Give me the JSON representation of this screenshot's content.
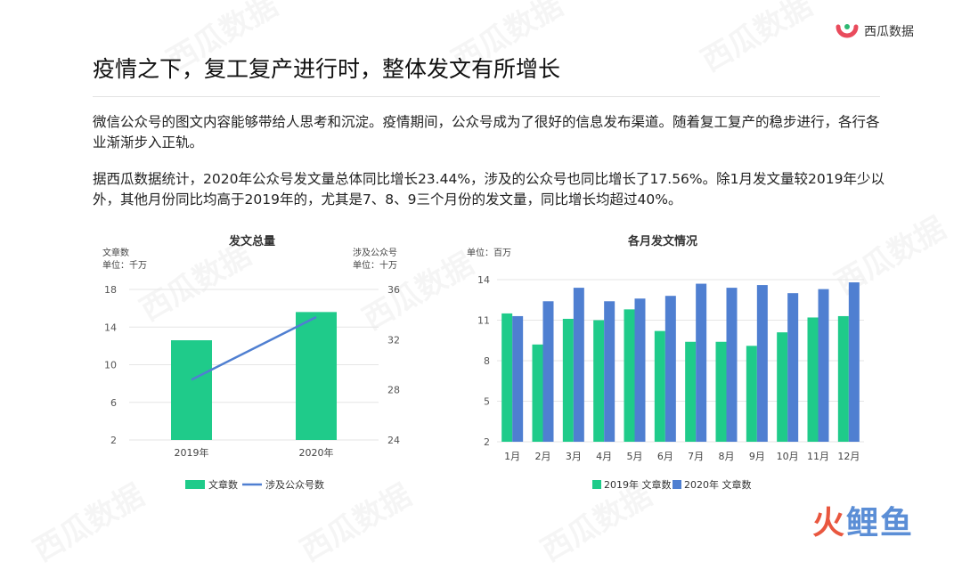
{
  "header": {
    "title": "疫情之下，复工复产进行时，整体发文有所增长",
    "logo_text": "西瓜数据",
    "logo_color": "#e94b5c",
    "logo_accent": "#2eb872"
  },
  "paragraphs": [
    "微信公众号的图文内容能够带给人思考和沉淀。疫情期间，公众号成为了很好的信息发布渠道。随着复工复产的稳步进行，各行各业渐渐步入正轨。",
    "据西瓜数据统计，2020年公众号发文量总体同比增长23.44%，涉及的公众号也同比增长了17.56%。除1月发文量较2019年少以外，其他月份同比均高于2019年的，尤其是7、8、9三个月份的发文量，同比增长均超过40%。"
  ],
  "watermark_text": "西瓜数据",
  "brand": {
    "part1": "火",
    "part2": "鲤鱼"
  },
  "chart_data": [
    {
      "type": "bar+line",
      "title": "发文总量",
      "categories": [
        "2019年",
        "2020年"
      ],
      "left_axis": {
        "label": "文章数",
        "unit": "单位：千万",
        "ticks": [
          2,
          6,
          10,
          14,
          18
        ],
        "ylim": [
          2,
          18
        ]
      },
      "right_axis": {
        "label": "涉及公众号",
        "unit": "单位：十万",
        "ticks": [
          24,
          28,
          32,
          36
        ],
        "ylim": [
          24,
          36
        ]
      },
      "series": [
        {
          "name": "文章数",
          "type": "bar",
          "axis": "left",
          "color": "#1fcb8a",
          "values": [
            12.6,
            15.6
          ]
        },
        {
          "name": "涉及公众号数",
          "type": "line",
          "axis": "right",
          "color": "#4f7fd1",
          "values": [
            28.8,
            33.8
          ]
        }
      ],
      "legend": "bottom"
    },
    {
      "type": "bar",
      "title": "各月发文情况",
      "unit": "单位：百万",
      "categories": [
        "1月",
        "2月",
        "3月",
        "4月",
        "5月",
        "6月",
        "7月",
        "8月",
        "9月",
        "10月",
        "11月",
        "12月"
      ],
      "ylim": [
        2,
        14
      ],
      "ticks": [
        2,
        5,
        8,
        11,
        14
      ],
      "series": [
        {
          "name": "2019年 文章数",
          "color": "#1fcb8a",
          "values": [
            11.5,
            9.2,
            11.1,
            11.0,
            11.8,
            10.2,
            9.4,
            9.4,
            9.1,
            10.1,
            11.2,
            11.3
          ]
        },
        {
          "name": "2020年 文章数",
          "color": "#4f7fd1",
          "values": [
            11.3,
            12.4,
            13.4,
            12.4,
            12.6,
            12.8,
            13.7,
            13.4,
            13.6,
            13.0,
            13.3,
            13.8
          ]
        }
      ],
      "legend": "bottom"
    }
  ]
}
